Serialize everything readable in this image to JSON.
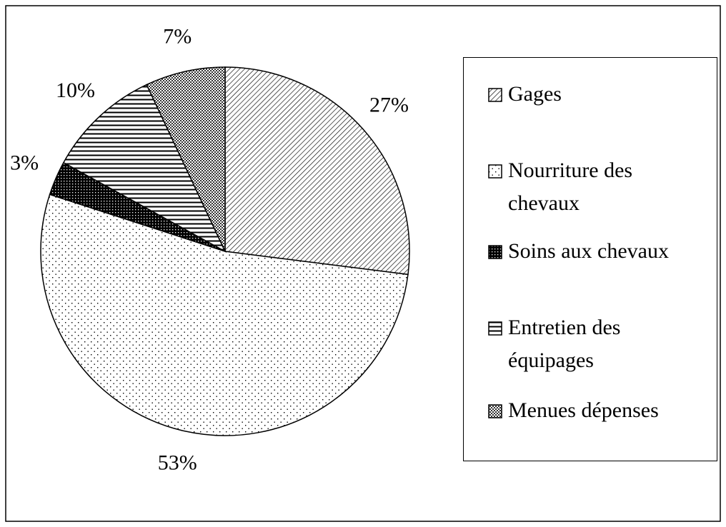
{
  "chart_data": {
    "type": "pie",
    "categories": [
      "Gages",
      "Nourriture des chevaux",
      "Soins aux chevaux",
      "Entretien des équipages",
      "Menues dépenses"
    ],
    "values": [
      27,
      53,
      3,
      10,
      7
    ],
    "value_labels": [
      "27%",
      "53%",
      "3%",
      "10%",
      "7%"
    ]
  }
}
